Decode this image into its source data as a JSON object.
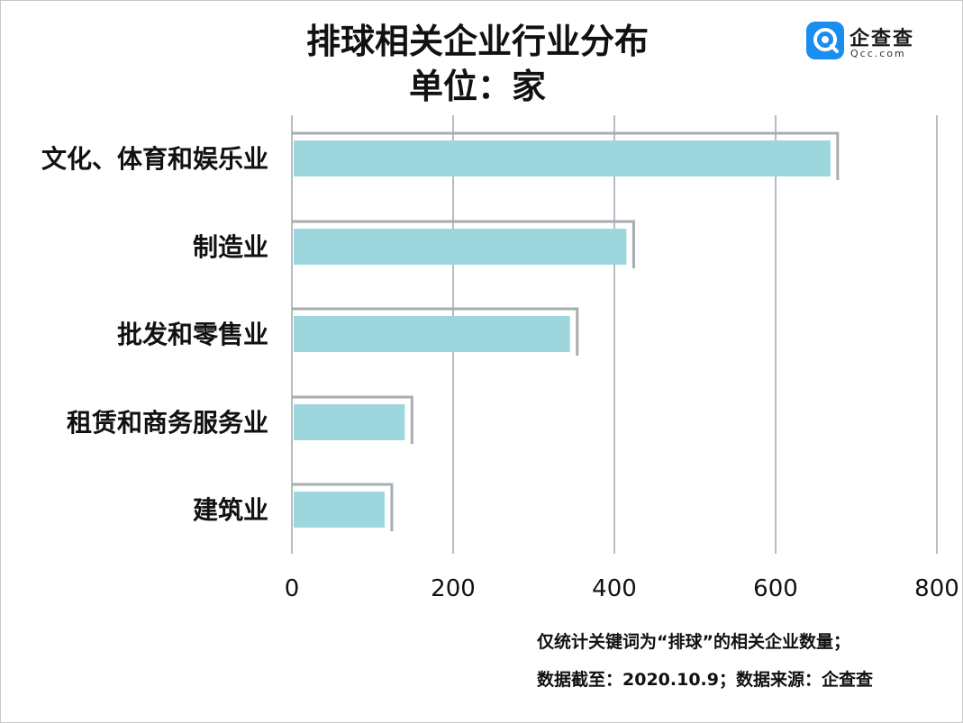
{
  "title_line1": "排球相关企业行业分布",
  "title_line2": "单位：家",
  "logo": {
    "name_cn": "企查查",
    "name_en": "Qcc.com"
  },
  "notes": {
    "line1": "仅统计关键词为“排球”的相关企业数量；",
    "line2": "数据截至：2020.10.9；数据来源：企查查"
  },
  "colors": {
    "bar": "#9dd7dd",
    "shadow": "#a7adb3",
    "grid": "#b8bcc0",
    "logo": "#1a8df0"
  },
  "chart_data": {
    "type": "bar",
    "orientation": "horizontal",
    "title": "排球相关企业行业分布",
    "subtitle": "单位：家",
    "categories": [
      "文化、体育和娱乐业",
      "制造业",
      "批发和零售业",
      "租赁和商务服务业",
      "建筑业"
    ],
    "values": [
      668,
      415,
      345,
      140,
      115
    ],
    "xlim": [
      0,
      800
    ],
    "xticks": [
      "0",
      "200",
      "400",
      "600",
      "800"
    ],
    "grid": true,
    "legend": "none"
  }
}
